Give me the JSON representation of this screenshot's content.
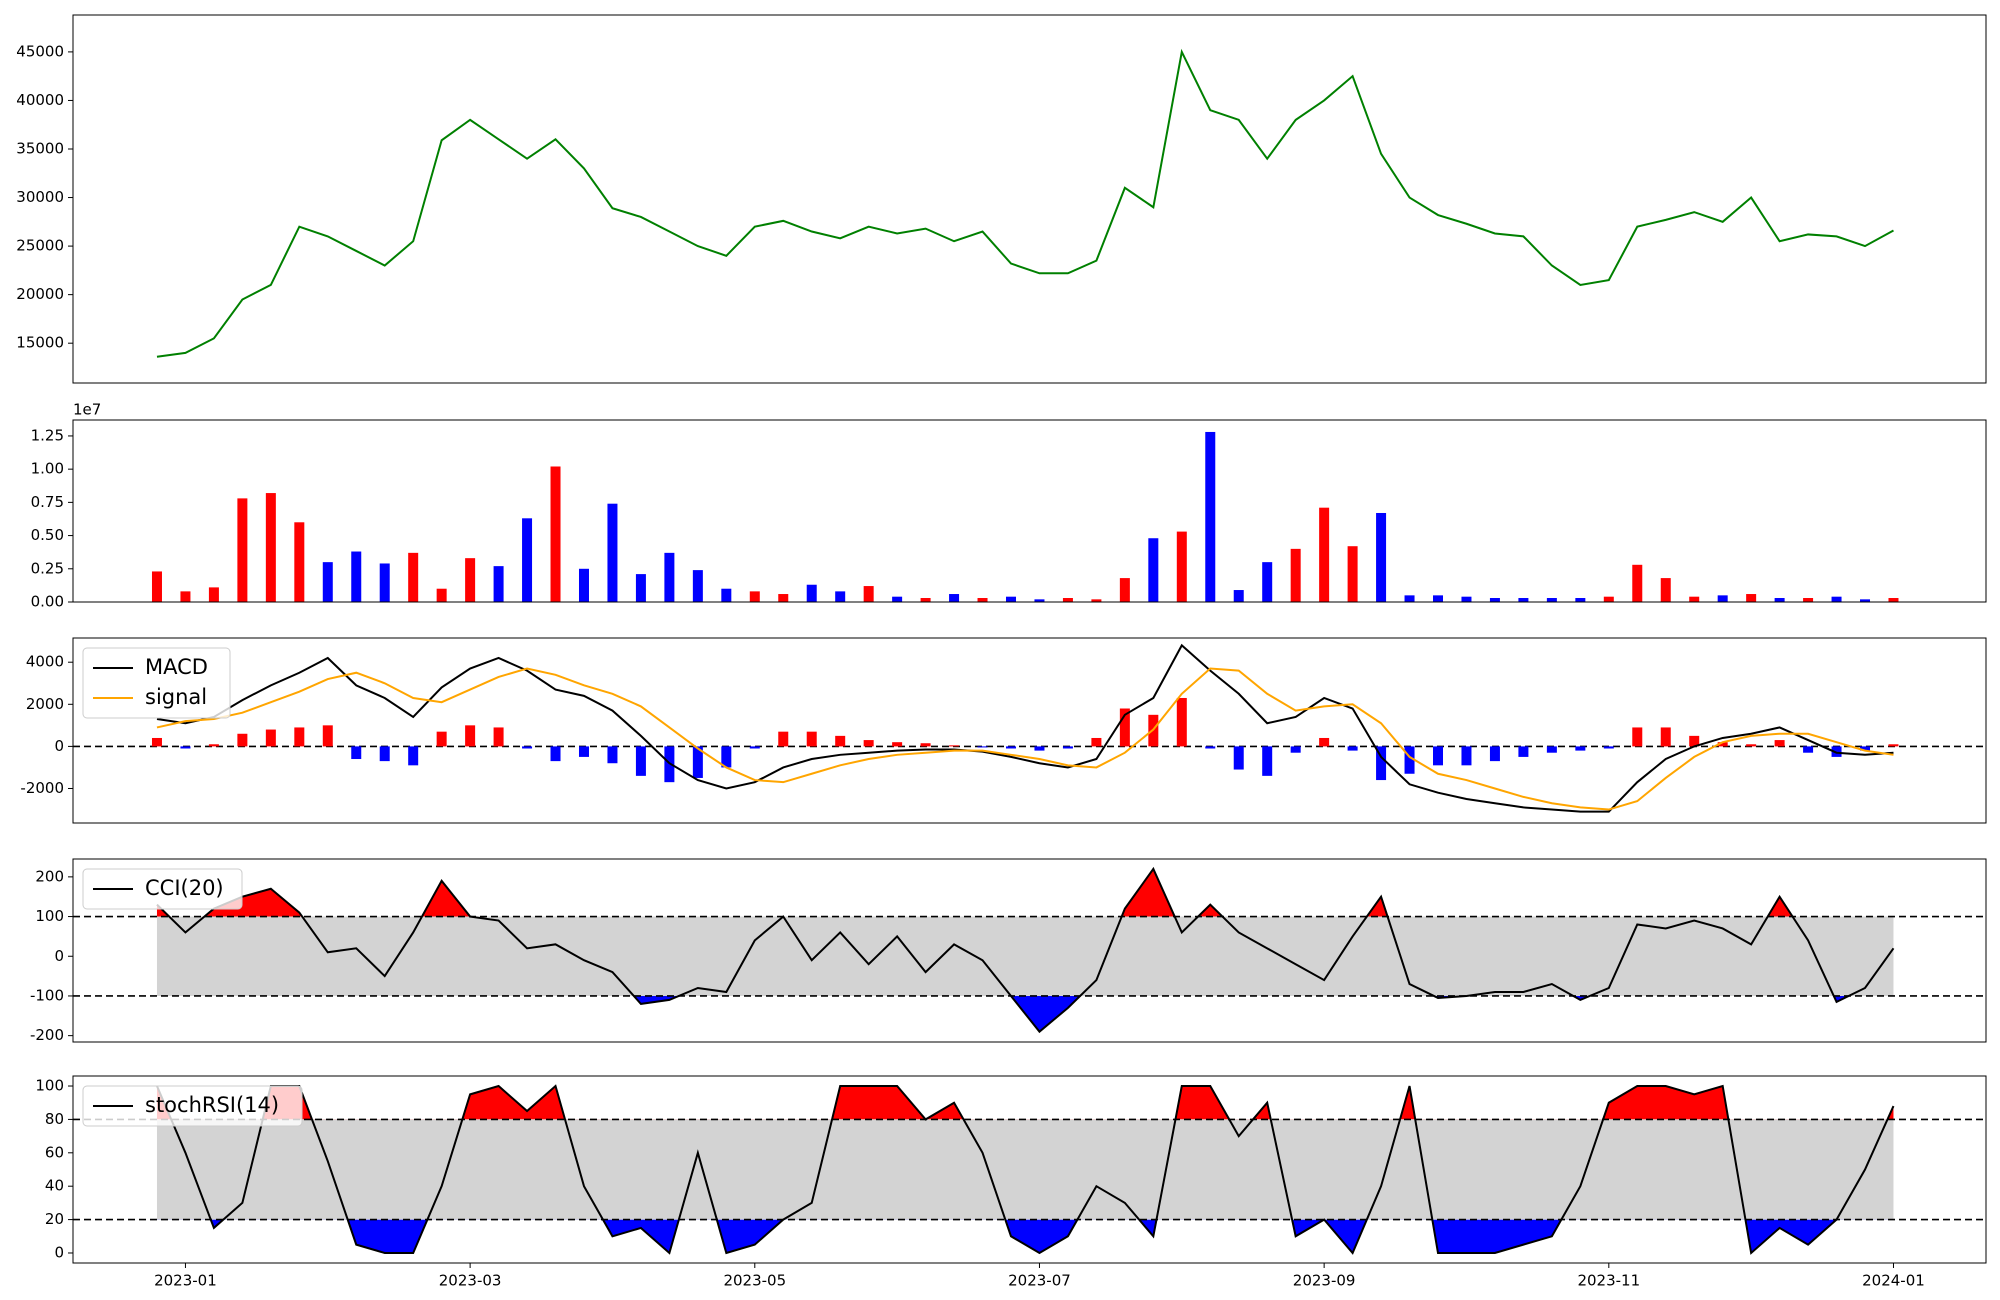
{
  "chart_data": [
    {
      "type": "line",
      "color": "#008000",
      "values": [
        13600,
        14000,
        15500,
        19500,
        21000,
        27000,
        26000,
        24500,
        23000,
        25500,
        35900,
        38000,
        36000,
        34000,
        36000,
        33000,
        28900,
        28000,
        26500,
        25000,
        24000,
        27000,
        27600,
        26500,
        25800,
        27000,
        26300,
        26800,
        25500,
        26500,
        23200,
        22200,
        22200,
        23500,
        31000,
        29000,
        45000,
        39000,
        38000,
        34000,
        38000,
        40000,
        42500,
        34500,
        30000,
        28200,
        27300,
        26300,
        26000,
        23000,
        21000,
        21500,
        27000,
        27700,
        28500,
        27500,
        30000,
        25500,
        26200,
        26000,
        25000,
        26600
      ],
      "ylim": [
        10900,
        48800
      ],
      "yticks": [
        15000,
        20000,
        25000,
        30000,
        35000,
        40000,
        45000
      ]
    },
    {
      "type": "bar",
      "offset_label": "1e7",
      "up_color": "#ff0000",
      "down_color": "#0000ff",
      "values": [
        2300000,
        800000,
        1100000,
        7800000,
        8200000,
        6000000,
        3000000,
        3800000,
        2900000,
        3700000,
        1000000,
        3300000,
        2700000,
        6300000,
        10200000,
        2500000,
        7400000,
        2100000,
        3700000,
        2400000,
        1000000,
        800000,
        600000,
        1300000,
        800000,
        1200000,
        400000,
        300000,
        600000,
        300000,
        400000,
        200000,
        300000,
        200000,
        1800000,
        4800000,
        5300000,
        12800000,
        900000,
        3000000,
        4000000,
        7100000,
        4200000,
        6700000,
        500000,
        500000,
        400000,
        300000,
        300000,
        300000,
        300000,
        400000,
        2800000,
        1800000,
        400000,
        500000,
        600000,
        300000,
        300000,
        400000,
        200000,
        300000
      ],
      "ylim": [
        0,
        13700000
      ],
      "yticks": [
        {
          "value": 0,
          "label": "0.00"
        },
        {
          "value": 2500000,
          "label": "0.25"
        },
        {
          "value": 5000000,
          "label": "0.50"
        },
        {
          "value": 7500000,
          "label": "0.75"
        },
        {
          "value": 10000000,
          "label": "1.00"
        },
        {
          "value": 12500000,
          "label": "1.25"
        }
      ]
    },
    {
      "type": "macd",
      "legend": "upper left",
      "hlines": [
        0
      ],
      "pos_color": "#ff0000",
      "neg_color": "#0000ff",
      "series": [
        {
          "name": "MACD",
          "color": "#000000",
          "values": [
            1300,
            1100,
            1400,
            2200,
            2900,
            3500,
            4200,
            2900,
            2300,
            1400,
            2800,
            3700,
            4200,
            3600,
            2700,
            2400,
            1700,
            500,
            -800,
            -1600,
            -2000,
            -1700,
            -1000,
            -600,
            -400,
            -300,
            -200,
            -150,
            -150,
            -250,
            -500,
            -800,
            -1000,
            -600,
            1500,
            2300,
            4800,
            3600,
            2500,
            1100,
            1400,
            2300,
            1800,
            -500,
            -1800,
            -2200,
            -2500,
            -2700,
            -2900,
            -3000,
            -3100,
            -3100,
            -1700,
            -600,
            0,
            400,
            600,
            900,
            300,
            -300,
            -400,
            -300
          ]
        },
        {
          "name": "signal",
          "color": "#ffa500",
          "values": [
            900,
            1200,
            1300,
            1600,
            2100,
            2600,
            3200,
            3500,
            3000,
            2300,
            2100,
            2700,
            3300,
            3700,
            3400,
            2900,
            2500,
            1900,
            900,
            -100,
            -1000,
            -1600,
            -1700,
            -1300,
            -900,
            -600,
            -400,
            -300,
            -200,
            -200,
            -400,
            -600,
            -900,
            -1000,
            -300,
            800,
            2500,
            3700,
            3600,
            2500,
            1700,
            1900,
            2000,
            1100,
            -500,
            -1300,
            -1600,
            -2000,
            -2400,
            -2700,
            -2900,
            -3000,
            -2600,
            -1500,
            -500,
            200,
            500,
            600,
            600,
            200,
            -200,
            -400
          ]
        }
      ],
      "histogram": [
        400,
        -100,
        100,
        600,
        800,
        900,
        1000,
        -600,
        -700,
        -900,
        700,
        1000,
        900,
        -100,
        -700,
        -500,
        -800,
        -1400,
        -1700,
        -1500,
        -1000,
        -100,
        700,
        700,
        500,
        300,
        200,
        150,
        50,
        -50,
        -100,
        -200,
        -100,
        400,
        1800,
        1500,
        2300,
        -100,
        -1100,
        -1400,
        -300,
        400,
        -200,
        -1600,
        -1300,
        -900,
        -900,
        -700,
        -500,
        -300,
        -200,
        -100,
        900,
        900,
        500,
        200,
        100,
        300,
        -300,
        -500,
        -200,
        100
      ],
      "ylim": [
        -3640,
        5150
      ],
      "yticks": [
        -2000,
        0,
        2000,
        4000
      ]
    },
    {
      "type": "band",
      "legend": "upper left",
      "levels": [
        -100,
        100
      ],
      "band_color": "#d3d3d3",
      "above_color": "#ff0000",
      "below_color": "#0000ff",
      "series": [
        {
          "name": "CCI(20)",
          "color": "#000000",
          "values": [
            130,
            60,
            120,
            150,
            170,
            110,
            10,
            20,
            -50,
            60,
            190,
            100,
            90,
            20,
            30,
            -10,
            -40,
            -120,
            -110,
            -80,
            -90,
            40,
            100,
            -10,
            60,
            -20,
            50,
            -40,
            30,
            -10,
            -100,
            -190,
            -130,
            -60,
            120,
            220,
            60,
            130,
            60,
            20,
            -20,
            -60,
            50,
            150,
            -70,
            -105,
            -100,
            -90,
            -90,
            -70,
            -110,
            -80,
            80,
            70,
            90,
            70,
            30,
            150,
            40,
            -115,
            -80,
            20
          ]
        }
      ],
      "ylim": [
        -216,
        245
      ],
      "yticks": [
        -200,
        -100,
        0,
        100,
        200
      ]
    },
    {
      "type": "band",
      "legend": "upper left",
      "levels": [
        20,
        80
      ],
      "band_color": "#d3d3d3",
      "above_color": "#ff0000",
      "below_color": "#0000ff",
      "series": [
        {
          "name": "stochRSI(14)",
          "color": "#000000",
          "values": [
            100,
            60,
            15,
            30,
            100,
            100,
            55,
            5,
            0,
            0,
            40,
            95,
            100,
            85,
            100,
            40,
            10,
            15,
            0,
            60,
            0,
            5,
            20,
            30,
            100,
            100,
            100,
            80,
            90,
            60,
            10,
            0,
            10,
            40,
            30,
            10,
            100,
            100,
            70,
            90,
            10,
            20,
            0,
            40,
            100,
            0,
            0,
            0,
            5,
            10,
            40,
            90,
            100,
            100,
            95,
            100,
            0,
            15,
            5,
            20,
            50,
            88
          ]
        }
      ],
      "ylim": [
        -6,
        106
      ],
      "yticks": [
        0,
        20,
        40,
        60,
        80,
        100
      ],
      "x": [
        -0.2,
        0,
        0.2,
        0.4,
        0.6,
        0.8,
        1,
        1.2,
        1.4,
        1.6,
        1.8,
        2,
        2.2,
        2.4,
        2.6,
        2.8,
        3,
        3.2,
        3.4,
        3.6,
        3.8,
        4,
        4.2,
        4.4,
        4.6,
        4.8,
        5,
        5.2,
        5.4,
        5.6,
        5.8,
        6,
        6.2,
        6.4,
        6.6,
        6.8,
        7,
        7.2,
        7.4,
        7.6,
        7.8,
        8,
        8.2,
        8.4,
        8.6,
        8.8,
        9,
        9.2,
        9.4,
        9.6,
        9.8,
        10,
        10.2,
        10.4,
        10.6,
        10.8,
        11,
        11.2,
        11.4,
        11.6,
        11.8,
        12
      ],
      "xlim": [
        -0.79,
        12.65
      ],
      "xticks": [
        {
          "value": 0,
          "label": "2023-01"
        },
        {
          "value": 2,
          "label": "2023-03"
        },
        {
          "value": 4,
          "label": "2023-05"
        },
        {
          "value": 6,
          "label": "2023-07"
        },
        {
          "value": 8,
          "label": "2023-09"
        },
        {
          "value": 10,
          "label": "2023-11"
        },
        {
          "value": 12,
          "label": "2024-01"
        }
      ]
    }
  ]
}
